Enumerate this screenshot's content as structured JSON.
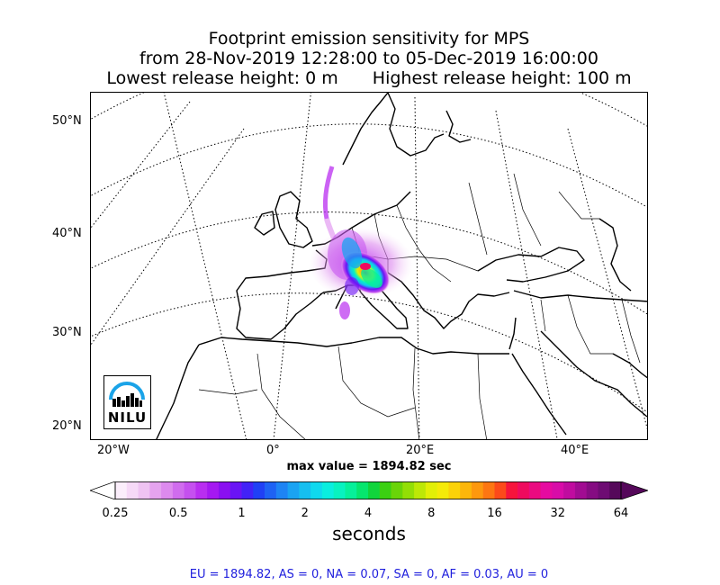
{
  "title": {
    "line1": "Footprint emission sensitivity for MPS",
    "line2": "from 28-Nov-2019 12:28:00 to 05-Dec-2019 16:00:00",
    "line3_left": "Lowest release height: 0 m",
    "line3_right": "Highest release height: 100 m"
  },
  "map": {
    "lat_labels": [
      "50°N",
      "40°N",
      "30°N",
      "20°N"
    ],
    "lon_labels": [
      "20°W",
      "0°",
      "20°E",
      "40°E"
    ],
    "logo_text": "NILU",
    "logo_color": "#1aa3e8"
  },
  "max_value": "max value = 1894.82 sec",
  "colorbar": {
    "tick_labels": [
      "0.25",
      "0.5",
      "1",
      "2",
      "4",
      "8",
      "16",
      "32",
      "64"
    ],
    "unit": "seconds",
    "colors": [
      "#fbeefb",
      "#f6d9f7",
      "#efc3f2",
      "#e5a3ef",
      "#dd8aee",
      "#d06cee",
      "#c550ef",
      "#b92ef0",
      "#a518f1",
      "#8a10f0",
      "#6a14f5",
      "#4222f7",
      "#2040f5",
      "#1e62f4",
      "#1e84f4",
      "#1aa3f2",
      "#16bff0",
      "#10d9ee",
      "#0aeedf",
      "#08f2c0",
      "#06f09a",
      "#06e66e",
      "#10d43c",
      "#3bd012",
      "#6ad408",
      "#93de06",
      "#bde806",
      "#e2ef06",
      "#f5ea08",
      "#fbd208",
      "#fcb60a",
      "#fd980e",
      "#fd7612",
      "#fc4a1a",
      "#f6143c",
      "#ef0a5e",
      "#ea0a80",
      "#e60aa0",
      "#d80ca8",
      "#c00c9f",
      "#a10c92",
      "#850c82",
      "#6e0c73",
      "#55085a"
    ]
  },
  "regions": "EU = 1894.82,  AS = 0,  NA = 0.07,  SA = 0,  AF = 0.03,  AU = 0"
}
